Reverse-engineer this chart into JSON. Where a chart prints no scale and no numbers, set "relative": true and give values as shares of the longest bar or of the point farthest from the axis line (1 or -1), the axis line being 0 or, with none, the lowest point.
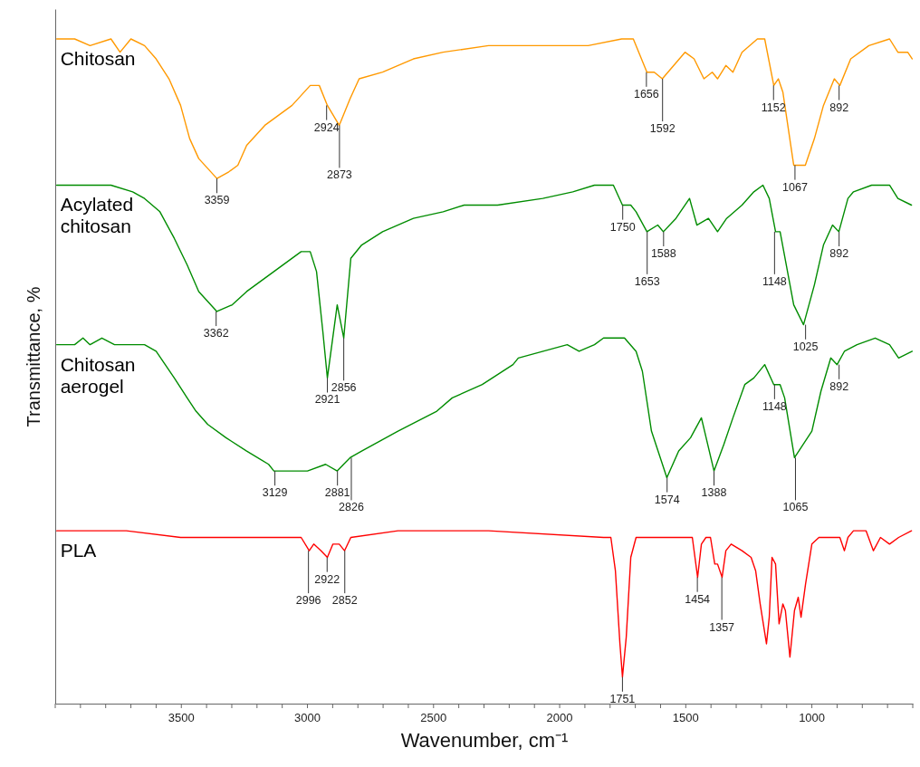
{
  "chart_data": {
    "type": "line",
    "relative": true,
    "xlabel": "Wavenumber, cm⁻¹",
    "ylabel": "Transmittance, %",
    "xlim": [
      4000,
      600
    ],
    "xticks": [
      {
        "value": 4000,
        "label": null
      },
      {
        "value": 3900,
        "label": null
      },
      {
        "value": 3800,
        "label": null
      },
      {
        "value": 3700,
        "label": null
      },
      {
        "value": 3600,
        "label": null
      },
      3500,
      {
        "value": 3400,
        "label": null
      },
      {
        "value": 3300,
        "label": null
      },
      {
        "value": 3200,
        "label": null
      },
      {
        "value": 3100,
        "label": null
      },
      3000,
      {
        "value": 2900,
        "label": null
      },
      {
        "value": 2800,
        "label": null
      },
      {
        "value": 2700,
        "label": null
      },
      {
        "value": 2600,
        "label": null
      },
      2500,
      {
        "value": 2400,
        "label": null
      },
      {
        "value": 2300,
        "label": null
      },
      {
        "value": 2200,
        "label": null
      },
      {
        "value": 2100,
        "label": null
      },
      2000,
      {
        "value": 1900,
        "label": null
      },
      {
        "value": 1800,
        "label": null
      },
      {
        "value": 1700,
        "label": null
      },
      {
        "value": 1600,
        "label": null
      },
      1500,
      {
        "value": 1400,
        "label": null
      },
      {
        "value": 1300,
        "label": null
      },
      {
        "value": 1200,
        "label": null
      },
      {
        "value": 1100,
        "label": null
      },
      1000,
      {
        "value": 900,
        "label": null
      },
      {
        "value": 800,
        "label": null
      },
      {
        "value": 700,
        "label": null
      },
      {
        "value": 600,
        "label": null
      }
    ],
    "line_style": "solid",
    "marker": "none",
    "series": [
      {
        "name": "Chitosan",
        "color": "#ff9900",
        "x": [
          3994,
          3923,
          3862,
          3779,
          3743,
          3700,
          3646,
          3600,
          3549,
          3503,
          3467,
          3431,
          3359,
          3312,
          3276,
          3241,
          3169,
          3061,
          2989,
          2953,
          2921,
          2874,
          2831,
          2795,
          2702,
          2580,
          2462,
          2282,
          2185,
          1970,
          1887,
          1754,
          1708,
          1654,
          1625,
          1593,
          1503,
          1467,
          1428,
          1395,
          1374,
          1341,
          1313,
          1277,
          1216,
          1187,
          1151,
          1133,
          1115,
          1072,
          1051,
          1026,
          990,
          954,
          911,
          889,
          846,
          774,
          692,
          659,
          620,
          602
        ],
        "values": [
          1.0,
          1.0,
          0.99,
          1.0,
          0.98,
          1.0,
          0.99,
          0.97,
          0.94,
          0.9,
          0.85,
          0.82,
          0.79,
          0.8,
          0.81,
          0.84,
          0.87,
          0.9,
          0.93,
          0.93,
          0.9,
          0.87,
          0.91,
          0.94,
          0.95,
          0.97,
          0.98,
          0.99,
          0.99,
          0.99,
          0.99,
          1.0,
          1.0,
          0.95,
          0.95,
          0.94,
          0.98,
          0.97,
          0.94,
          0.95,
          0.94,
          0.96,
          0.95,
          0.98,
          1.0,
          1.0,
          0.93,
          0.94,
          0.92,
          0.81,
          0.81,
          0.81,
          0.85,
          0.9,
          0.94,
          0.93,
          0.97,
          0.99,
          1.0,
          0.98,
          0.98,
          0.97
        ]
      },
      {
        "name": "Acylated chitosan",
        "color": "#008c00",
        "x": [
          3994,
          3897,
          3779,
          3693,
          3646,
          3585,
          3528,
          3477,
          3431,
          3359,
          3298,
          3241,
          3133,
          3025,
          2989,
          2964,
          2939,
          2921,
          2882,
          2856,
          2828,
          2785,
          2702,
          2580,
          2462,
          2379,
          2282,
          2246,
          2067,
          1948,
          1862,
          1787,
          1751,
          1718,
          1697,
          1654,
          1611,
          1589,
          1539,
          1485,
          1456,
          1410,
          1374,
          1338,
          1277,
          1230,
          1194,
          1169,
          1144,
          1126,
          1072,
          1033,
          990,
          954,
          918,
          893,
          857,
          835,
          763,
          692,
          659,
          605
        ],
        "values": [
          0.78,
          0.78,
          0.78,
          0.77,
          0.76,
          0.74,
          0.7,
          0.66,
          0.62,
          0.59,
          0.6,
          0.62,
          0.65,
          0.68,
          0.68,
          0.65,
          0.56,
          0.49,
          0.6,
          0.55,
          0.67,
          0.69,
          0.71,
          0.73,
          0.74,
          0.75,
          0.75,
          0.75,
          0.76,
          0.77,
          0.78,
          0.78,
          0.75,
          0.75,
          0.74,
          0.71,
          0.72,
          0.71,
          0.73,
          0.76,
          0.72,
          0.73,
          0.71,
          0.73,
          0.75,
          0.77,
          0.78,
          0.76,
          0.71,
          0.71,
          0.6,
          0.57,
          0.63,
          0.69,
          0.72,
          0.71,
          0.76,
          0.77,
          0.78,
          0.78,
          0.76,
          0.75
        ]
      },
      {
        "name": "Chitosan aerogel",
        "color": "#008c00",
        "x": [
          3994,
          3923,
          3890,
          3862,
          3815,
          3765,
          3646,
          3600,
          3564,
          3528,
          3477,
          3442,
          3395,
          3323,
          3241,
          3154,
          3133,
          3097,
          3000,
          2928,
          2882,
          2831,
          2785,
          2641,
          2487,
          2426,
          2307,
          2185,
          2164,
          1970,
          1923,
          1862,
          1826,
          1743,
          1697,
          1672,
          1636,
          1575,
          1528,
          1481,
          1438,
          1388,
          1349,
          1313,
          1266,
          1230,
          1187,
          1151,
          1126,
          1108,
          1069,
          1000,
          964,
          925,
          900,
          871,
          821,
          749,
          692,
          656,
          602
        ],
        "values": [
          0.54,
          0.54,
          0.55,
          0.54,
          0.55,
          0.54,
          0.54,
          0.53,
          0.51,
          0.49,
          0.46,
          0.44,
          0.42,
          0.4,
          0.38,
          0.36,
          0.35,
          0.35,
          0.35,
          0.36,
          0.35,
          0.37,
          0.38,
          0.41,
          0.44,
          0.46,
          0.48,
          0.51,
          0.52,
          0.54,
          0.53,
          0.54,
          0.55,
          0.55,
          0.53,
          0.5,
          0.41,
          0.34,
          0.38,
          0.4,
          0.43,
          0.35,
          0.39,
          0.43,
          0.48,
          0.49,
          0.51,
          0.48,
          0.48,
          0.46,
          0.37,
          0.41,
          0.47,
          0.52,
          0.51,
          0.53,
          0.54,
          0.55,
          0.54,
          0.52,
          0.53
        ]
      },
      {
        "name": "PLA",
        "color": "#ff0000",
        "x": [
          3994,
          3836,
          3718,
          3503,
          3298,
          3061,
          3025,
          2993,
          2975,
          2946,
          2921,
          2899,
          2874,
          2853,
          2828,
          2641,
          2282,
          1826,
          1797,
          1779,
          1761,
          1751,
          1736,
          1718,
          1697,
          1589,
          1492,
          1474,
          1453,
          1438,
          1420,
          1402,
          1385,
          1374,
          1356,
          1341,
          1320,
          1277,
          1241,
          1223,
          1205,
          1180,
          1169,
          1158,
          1144,
          1130,
          1115,
          1105,
          1087,
          1069,
          1054,
          1043,
          1025,
          1000,
          972,
          918,
          889,
          871,
          857,
          835,
          785,
          756,
          728,
          692,
          656,
          605
        ],
        "values": [
          0.26,
          0.26,
          0.26,
          0.25,
          0.25,
          0.25,
          0.25,
          0.23,
          0.24,
          0.23,
          0.22,
          0.24,
          0.24,
          0.23,
          0.25,
          0.26,
          0.26,
          0.25,
          0.25,
          0.2,
          0.09,
          0.04,
          0.1,
          0.22,
          0.25,
          0.25,
          0.25,
          0.25,
          0.19,
          0.24,
          0.25,
          0.25,
          0.21,
          0.21,
          0.19,
          0.23,
          0.24,
          0.23,
          0.22,
          0.2,
          0.15,
          0.09,
          0.13,
          0.22,
          0.21,
          0.12,
          0.15,
          0.14,
          0.07,
          0.14,
          0.16,
          0.13,
          0.18,
          0.24,
          0.25,
          0.25,
          0.25,
          0.23,
          0.25,
          0.26,
          0.26,
          0.23,
          0.25,
          0.24,
          0.25,
          0.26
        ]
      }
    ],
    "annotations": [
      {
        "text": "3359",
        "x": 3359,
        "y": 0.79
      },
      {
        "text": "2924",
        "x": 2924,
        "y": 0.9
      },
      {
        "text": "2873",
        "x": 2873,
        "y": 0.87
      },
      {
        "text": "1656",
        "x": 1656,
        "y": 0.95
      },
      {
        "text": "1592",
        "x": 1592,
        "y": 0.94
      },
      {
        "text": "1152",
        "x": 1152,
        "y": 0.93
      },
      {
        "text": "1067",
        "x": 1067,
        "y": 0.81
      },
      {
        "text": "892",
        "x": 892,
        "y": 0.93
      },
      {
        "text": "3362",
        "x": 3362,
        "y": 0.59
      },
      {
        "text": "2921",
        "x": 2921,
        "y": 0.49
      },
      {
        "text": "2856",
        "x": 2856,
        "y": 0.55
      },
      {
        "text": "1750",
        "x": 1750,
        "y": 0.75
      },
      {
        "text": "1653",
        "x": 1653,
        "y": 0.71
      },
      {
        "text": "1588",
        "x": 1588,
        "y": 0.71
      },
      {
        "text": "1148",
        "x": 1148,
        "y": 0.71
      },
      {
        "text": "1025",
        "x": 1025,
        "y": 0.57
      },
      {
        "text": "892",
        "x": 892,
        "y": 0.71
      },
      {
        "text": "3129",
        "x": 3129,
        "y": 0.35
      },
      {
        "text": "2881",
        "x": 2881,
        "y": 0.35
      },
      {
        "text": "2826",
        "x": 2826,
        "y": 0.37
      },
      {
        "text": "1574",
        "x": 1574,
        "y": 0.34
      },
      {
        "text": "1388",
        "x": 1388,
        "y": 0.35
      },
      {
        "text": "1148",
        "x": 1148,
        "y": 0.48
      },
      {
        "text": "1065",
        "x": 1065,
        "y": 0.37
      },
      {
        "text": "892",
        "x": 892,
        "y": 0.51
      },
      {
        "text": "2996",
        "x": 2996,
        "y": 0.23
      },
      {
        "text": "2922",
        "x": 2922,
        "y": 0.22
      },
      {
        "text": "2852",
        "x": 2852,
        "y": 0.23
      },
      {
        "text": "1751",
        "x": 1751,
        "y": 0.04
      },
      {
        "text": "1454",
        "x": 1454,
        "y": 0.19
      },
      {
        "text": "1357",
        "x": 1357,
        "y": 0.19
      }
    ]
  }
}
